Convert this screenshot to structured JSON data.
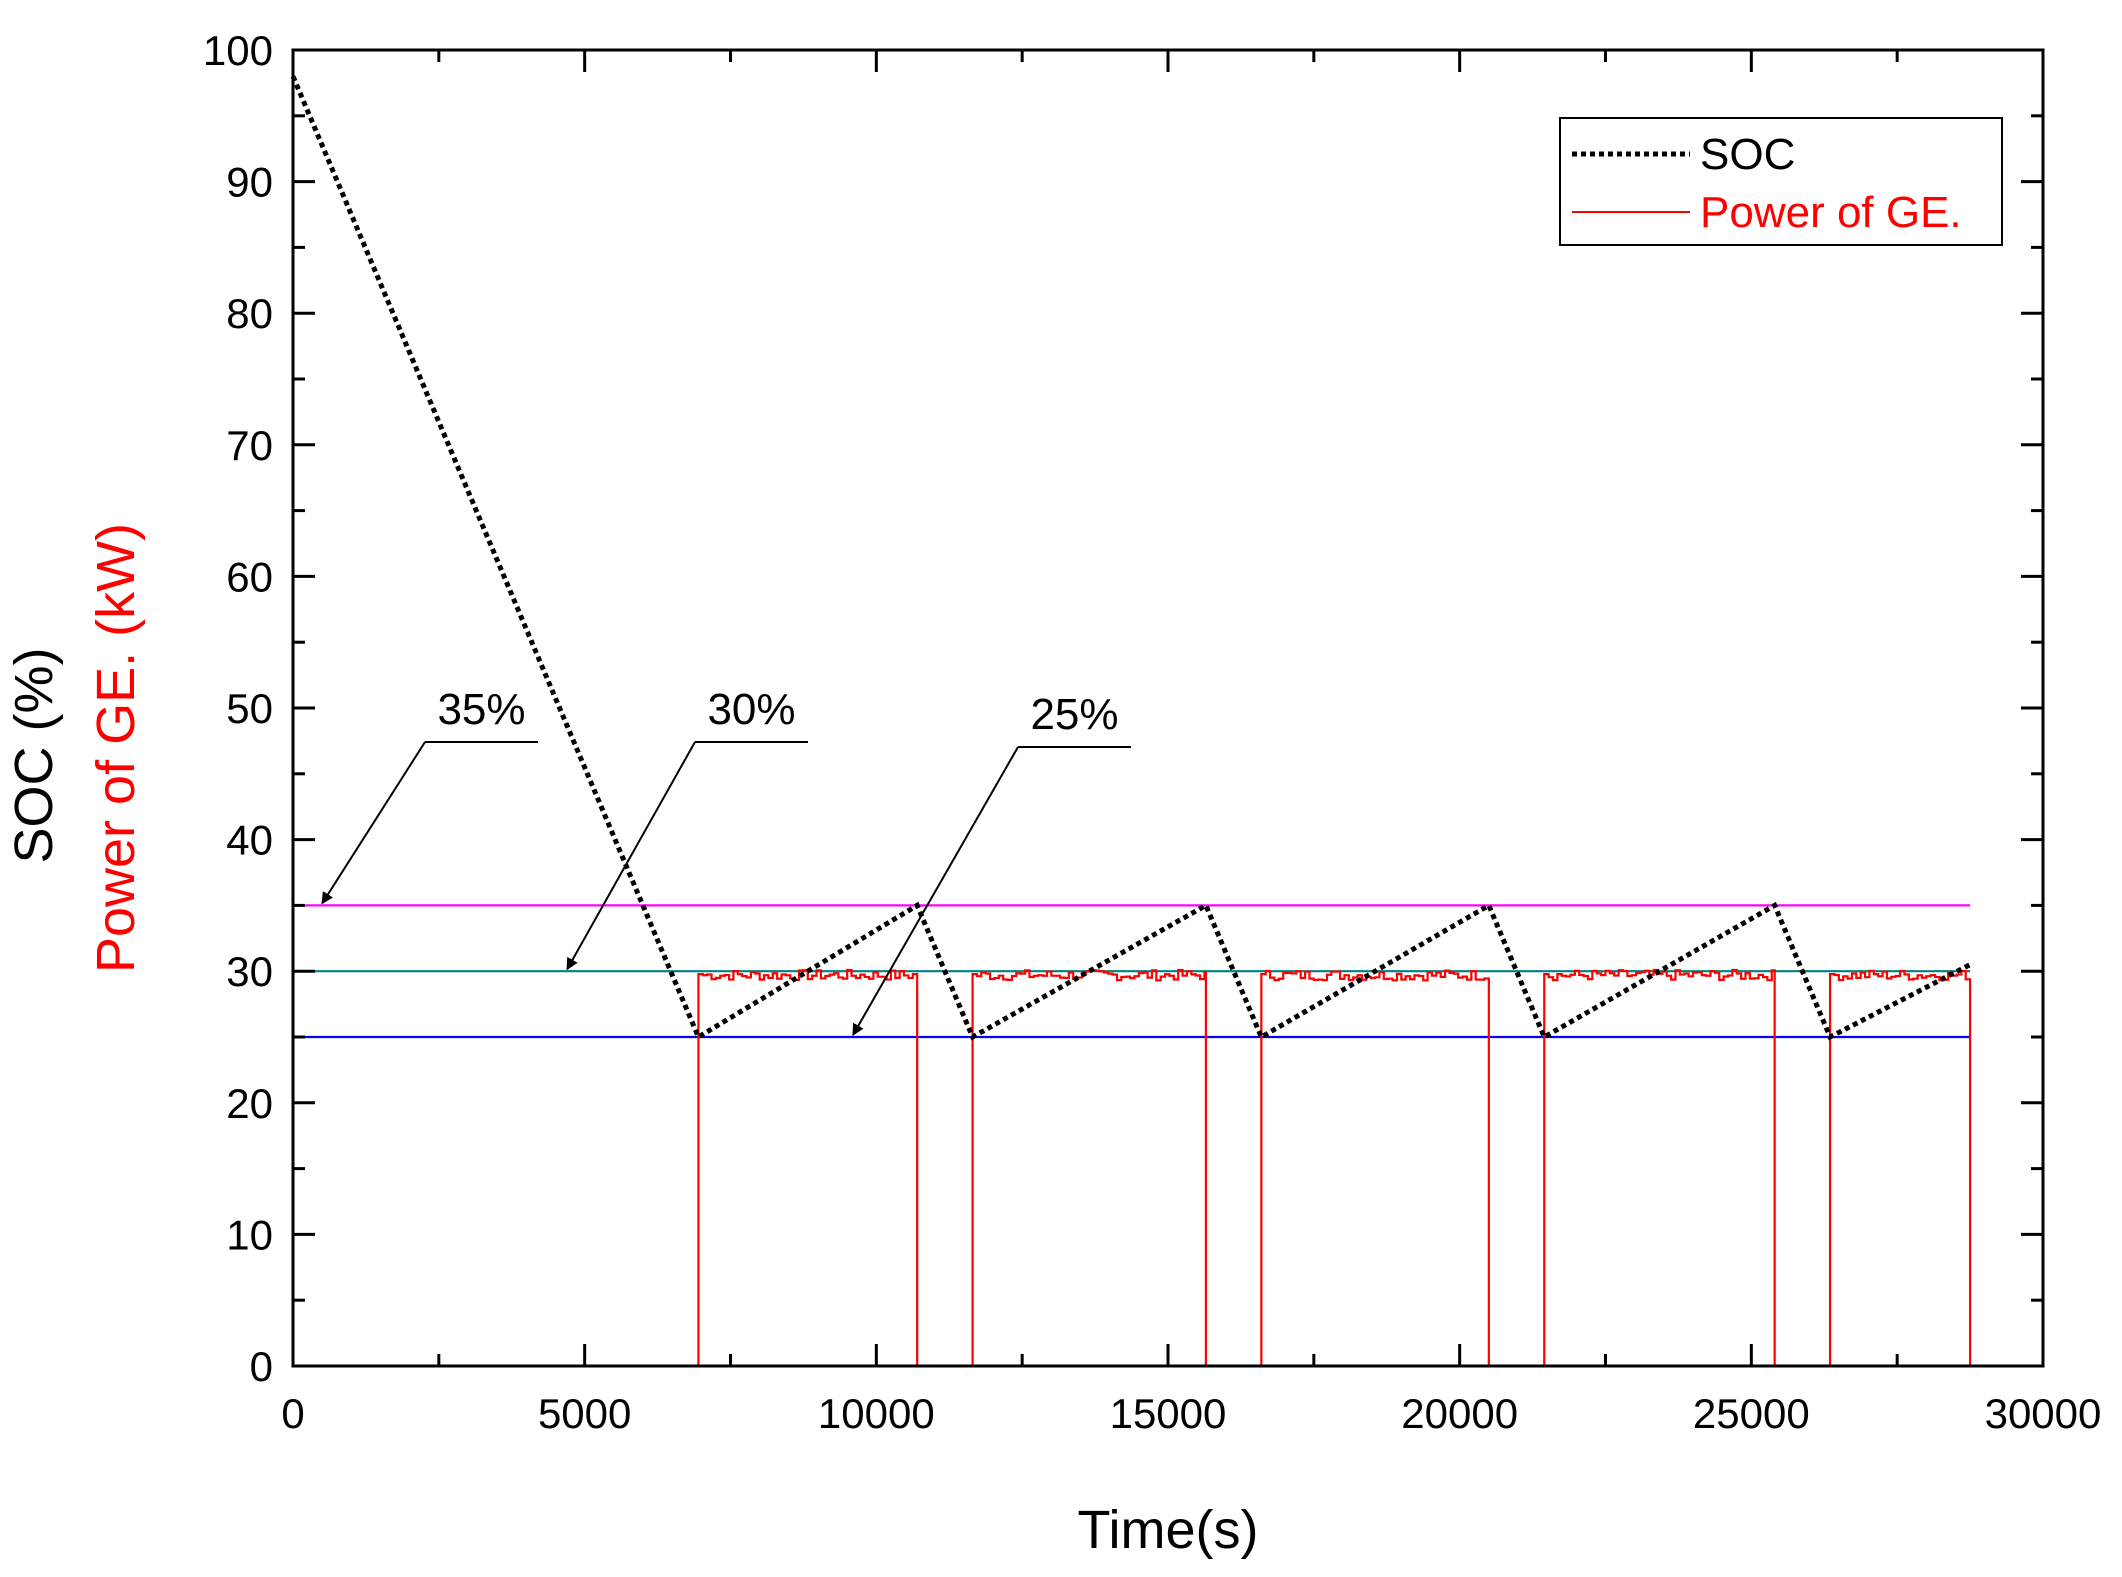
{
  "chart_data": {
    "type": "line",
    "xlabel": "Time(s)",
    "ylabel_parts": [
      "SOC (%)",
      "Power of GE. (kW)"
    ],
    "xlim": [
      0,
      30000
    ],
    "ylim": [
      0,
      100
    ],
    "x_ticks": [
      0,
      5000,
      10000,
      15000,
      20000,
      25000,
      30000
    ],
    "y_ticks": [
      0,
      10,
      20,
      30,
      40,
      50,
      60,
      70,
      80,
      90,
      100
    ],
    "grid": false,
    "legend": {
      "position": "top-right",
      "entries": [
        {
          "label": "SOC",
          "color": "#000000",
          "style": "dotted"
        },
        {
          "label": "Power of GE.",
          "color": "#ff0000",
          "style": "solid"
        }
      ]
    },
    "series": [
      {
        "name": "SOC",
        "color": "#000000",
        "style": "dotted",
        "x": [
          0,
          6950,
          10700,
          11650,
          15650,
          16600,
          20500,
          21450,
          25400,
          26350,
          28750
        ],
        "y": [
          98,
          25,
          35,
          25,
          35,
          25,
          35,
          25,
          35,
          25,
          30.5
        ]
      },
      {
        "name": "Power of GE.",
        "color": "#ff0000",
        "style": "step",
        "on_intervals": [
          [
            6950,
            10700
          ],
          [
            11650,
            15650
          ],
          [
            16600,
            20500
          ],
          [
            21450,
            25400
          ],
          [
            26350,
            28750
          ]
        ],
        "on_level_range": [
          29.3,
          30.1
        ],
        "off_level": 0
      }
    ],
    "reference_lines": [
      {
        "y": 35,
        "color": "#ff00ff",
        "x": [
          0,
          28750
        ]
      },
      {
        "y": 30,
        "color": "#008080",
        "x": [
          0,
          28750
        ]
      },
      {
        "y": 25,
        "color": "#0000ff",
        "x": [
          0,
          28750
        ]
      }
    ],
    "annotations": [
      {
        "text": "35%",
        "ref_y": 35,
        "target_x": 500
      },
      {
        "text": "30%",
        "ref_y": 30,
        "target_x": 4700
      },
      {
        "text": "25%",
        "ref_y": 25,
        "target_x": 9600
      }
    ]
  }
}
